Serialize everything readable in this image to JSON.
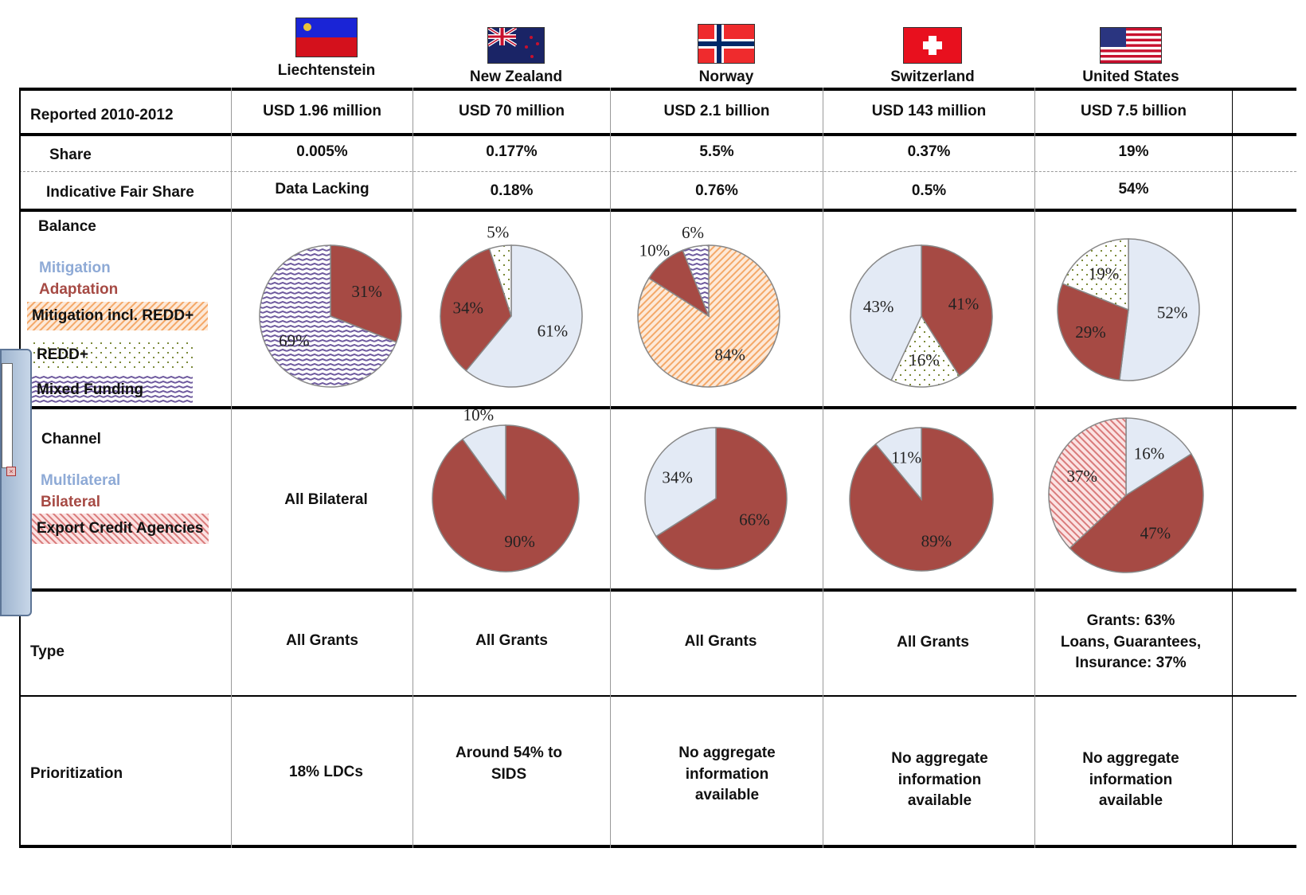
{
  "countries": [
    {
      "name": "Liechtenstein",
      "flag": "liechtenstein-flag"
    },
    {
      "name": "New Zealand",
      "flag": "new-zealand-flag"
    },
    {
      "name": "Norway",
      "flag": "norway-flag"
    },
    {
      "name": "Switzerland",
      "flag": "switzerland-flag"
    },
    {
      "name": "United States",
      "flag": "united-states-flag"
    }
  ],
  "rows": {
    "reported": {
      "label": "Reported 2010-2012",
      "values": [
        "USD 1.96 million",
        "USD 70 million",
        "USD 2.1 billion",
        "USD 143 million",
        "USD 7.5 billion"
      ]
    },
    "share": {
      "label": "Share",
      "values": [
        "0.005%",
        "0.177%",
        "5.5%",
        "0.37%",
        "19%"
      ]
    },
    "fair_share": {
      "label": "Indicative Fair Share",
      "values": [
        "Data Lacking",
        "0.18%",
        "0.76%",
        "0.5%",
        "54%"
      ]
    },
    "balance": {
      "label": "Balance"
    },
    "channel": {
      "label": "Channel",
      "liechtenstein_text": "All Bilateral"
    },
    "type": {
      "label": "Type",
      "values": [
        "All Grants",
        "All Grants",
        "All Grants",
        "All Grants",
        "Grants: 63%\nLoans, Guarantees,\nInsurance: 37%"
      ]
    },
    "prioritization": {
      "label": "Prioritization",
      "values": [
        "18% LDCs",
        "Around 54% to\nSIDS",
        "No aggregate\ninformation\navailable",
        "No aggregate\ninformation\navailable",
        "No aggregate\ninformation\navailable"
      ]
    }
  },
  "legends": {
    "balance": [
      "Mitigation",
      "Adaptation",
      "Mitigation incl. REDD+",
      "REDD+",
      "Mixed Funding"
    ],
    "channel": [
      "Multilateral",
      "Bilateral",
      "Export Credit Agencies"
    ]
  },
  "colors": {
    "mitigation": "#e3eaf5",
    "adaptation": "#a64a44",
    "mitigation_redd": "#f6b98a",
    "redd": "#7c8a3a",
    "mixed": "#6e5a9e",
    "multilateral": "#e3eaf5",
    "bilateral": "#a64a44",
    "export_credit": "#d97b7b",
    "legend_mitigation_text": "#8eaad6",
    "legend_adaptation_text": "#a64a44"
  },
  "chart_data": [
    {
      "type": "pie",
      "group": "Balance",
      "country": "Liechtenstein",
      "slices": [
        {
          "category": "Adaptation",
          "value": 31,
          "label": "31%"
        },
        {
          "category": "Mixed Funding",
          "value": 69,
          "label": "69%"
        }
      ]
    },
    {
      "type": "pie",
      "group": "Balance",
      "country": "New Zealand",
      "slices": [
        {
          "category": "Mitigation",
          "value": 61,
          "label": "61%"
        },
        {
          "category": "Adaptation",
          "value": 34,
          "label": "34%"
        },
        {
          "category": "REDD+",
          "value": 5,
          "label": "5%"
        }
      ]
    },
    {
      "type": "pie",
      "group": "Balance",
      "country": "Norway",
      "slices": [
        {
          "category": "Mitigation incl. REDD+",
          "value": 84,
          "label": "84%"
        },
        {
          "category": "Adaptation",
          "value": 10,
          "label": "10%"
        },
        {
          "category": "Mixed Funding",
          "value": 6,
          "label": "6%"
        }
      ]
    },
    {
      "type": "pie",
      "group": "Balance",
      "country": "Switzerland",
      "slices": [
        {
          "category": "Adaptation",
          "value": 41,
          "label": "41%"
        },
        {
          "category": "REDD+",
          "value": 16,
          "label": "16%"
        },
        {
          "category": "Mitigation",
          "value": 43,
          "label": "43%"
        }
      ]
    },
    {
      "type": "pie",
      "group": "Balance",
      "country": "United States",
      "slices": [
        {
          "category": "Mitigation",
          "value": 52,
          "label": "52%"
        },
        {
          "category": "Adaptation",
          "value": 29,
          "label": "29%"
        },
        {
          "category": "REDD+",
          "value": 19,
          "label": "19%"
        }
      ]
    },
    {
      "type": "pie",
      "group": "Channel",
      "country": "New Zealand",
      "slices": [
        {
          "category": "Bilateral",
          "value": 90,
          "label": "90%"
        },
        {
          "category": "Multilateral",
          "value": 10,
          "label": "10%"
        }
      ]
    },
    {
      "type": "pie",
      "group": "Channel",
      "country": "Norway",
      "slices": [
        {
          "category": "Bilateral",
          "value": 66,
          "label": "66%"
        },
        {
          "category": "Multilateral",
          "value": 34,
          "label": "34%"
        }
      ]
    },
    {
      "type": "pie",
      "group": "Channel",
      "country": "Switzerland",
      "slices": [
        {
          "category": "Bilateral",
          "value": 89,
          "label": "89%"
        },
        {
          "category": "Multilateral",
          "value": 11,
          "label": "11%"
        }
      ]
    },
    {
      "type": "pie",
      "group": "Channel",
      "country": "United States",
      "slices": [
        {
          "category": "Multilateral",
          "value": 16,
          "label": "16%"
        },
        {
          "category": "Bilateral",
          "value": 47,
          "label": "47%"
        },
        {
          "category": "Export Credit Agencies",
          "value": 37,
          "label": "37%"
        }
      ]
    }
  ]
}
